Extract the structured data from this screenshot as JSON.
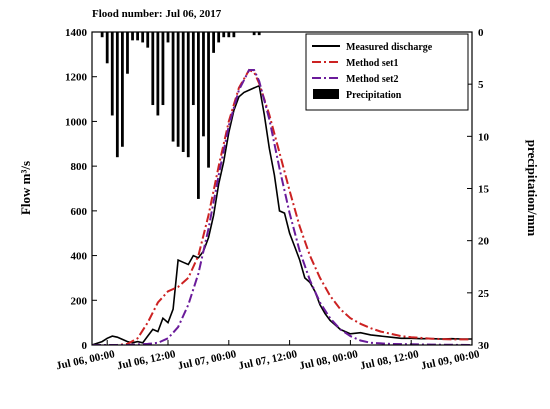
{
  "chart_data": {
    "type": "line",
    "title": "Flood number: Jul 06, 2017",
    "ylabel_left": "Flow m³/s",
    "ylabel_right": "precipitation/mm",
    "xlabel": "",
    "x_unit": "hours since Jul 06, 00:00",
    "xlim": [
      -3,
      72
    ],
    "ylim_left": [
      0,
      1400
    ],
    "ylim_right_inverted": [
      0,
      30
    ],
    "x_ticks": [
      {
        "x": 0,
        "label": "Jul 06, 00:00"
      },
      {
        "x": 12,
        "label": "Jul 06, 12:00"
      },
      {
        "x": 24,
        "label": "Jul 07, 00:00"
      },
      {
        "x": 36,
        "label": "Jul 07, 12:00"
      },
      {
        "x": 48,
        "label": "Jul 08, 00:00"
      },
      {
        "x": 60,
        "label": "Jul 08, 12:00"
      },
      {
        "x": 72,
        "label": "Jul 09, 00:00"
      }
    ],
    "y_ticks_left": [
      0,
      200,
      400,
      600,
      800,
      1000,
      1200,
      1400
    ],
    "y_ticks_right": [
      0,
      5,
      10,
      15,
      20,
      25,
      30
    ],
    "legend": {
      "position": "top-right"
    },
    "series": [
      {
        "name": "Measured discharge",
        "color": "#000000",
        "style": "solid",
        "points": [
          [
            -3,
            0
          ],
          [
            -1,
            15
          ],
          [
            0,
            30
          ],
          [
            1,
            40
          ],
          [
            2,
            35
          ],
          [
            3,
            25
          ],
          [
            4,
            15
          ],
          [
            5,
            10
          ],
          [
            6,
            15
          ],
          [
            7,
            10
          ],
          [
            8,
            40
          ],
          [
            9,
            70
          ],
          [
            10,
            60
          ],
          [
            11,
            120
          ],
          [
            12,
            100
          ],
          [
            13,
            160
          ],
          [
            14,
            380
          ],
          [
            15,
            370
          ],
          [
            16,
            360
          ],
          [
            17,
            400
          ],
          [
            18,
            390
          ],
          [
            19,
            420
          ],
          [
            20,
            480
          ],
          [
            21,
            580
          ],
          [
            22,
            720
          ],
          [
            23,
            820
          ],
          [
            24,
            950
          ],
          [
            25,
            1050
          ],
          [
            26,
            1110
          ],
          [
            27,
            1130
          ],
          [
            28,
            1140
          ],
          [
            29,
            1150
          ],
          [
            30,
            1160
          ],
          [
            31,
            1030
          ],
          [
            32,
            880
          ],
          [
            33,
            760
          ],
          [
            34,
            600
          ],
          [
            35,
            590
          ],
          [
            36,
            500
          ],
          [
            37,
            440
          ],
          [
            38,
            380
          ],
          [
            39,
            300
          ],
          [
            40,
            280
          ],
          [
            41,
            240
          ],
          [
            42,
            180
          ],
          [
            43,
            140
          ],
          [
            44,
            110
          ],
          [
            45,
            90
          ],
          [
            46,
            70
          ],
          [
            47,
            60
          ],
          [
            48,
            50
          ],
          [
            50,
            55
          ],
          [
            52,
            45
          ],
          [
            54,
            40
          ],
          [
            56,
            35
          ],
          [
            58,
            30
          ],
          [
            60,
            30
          ],
          [
            62,
            28
          ],
          [
            64,
            28
          ],
          [
            66,
            27
          ],
          [
            68,
            28
          ],
          [
            70,
            27
          ],
          [
            72,
            27
          ]
        ]
      },
      {
        "name": "Method set1",
        "color": "#cc2222",
        "style": "dashdot",
        "points": [
          [
            -3,
            0
          ],
          [
            0,
            0
          ],
          [
            2,
            0
          ],
          [
            4,
            5
          ],
          [
            6,
            30
          ],
          [
            8,
            100
          ],
          [
            10,
            190
          ],
          [
            12,
            240
          ],
          [
            14,
            260
          ],
          [
            16,
            300
          ],
          [
            18,
            400
          ],
          [
            20,
            580
          ],
          [
            22,
            800
          ],
          [
            24,
            1000
          ],
          [
            26,
            1150
          ],
          [
            28,
            1230
          ],
          [
            29,
            1220
          ],
          [
            30,
            1170
          ],
          [
            32,
            1030
          ],
          [
            34,
            860
          ],
          [
            36,
            690
          ],
          [
            38,
            530
          ],
          [
            40,
            400
          ],
          [
            42,
            300
          ],
          [
            44,
            220
          ],
          [
            46,
            160
          ],
          [
            48,
            120
          ],
          [
            50,
            95
          ],
          [
            52,
            75
          ],
          [
            54,
            60
          ],
          [
            56,
            50
          ],
          [
            58,
            40
          ],
          [
            60,
            35
          ],
          [
            64,
            28
          ],
          [
            68,
            25
          ],
          [
            72,
            25
          ]
        ]
      },
      {
        "name": "Method set2",
        "color": "#6a1b9a",
        "style": "dashdot",
        "points": [
          [
            -3,
            0
          ],
          [
            0,
            0
          ],
          [
            4,
            0
          ],
          [
            8,
            5
          ],
          [
            10,
            10
          ],
          [
            12,
            30
          ],
          [
            14,
            80
          ],
          [
            16,
            180
          ],
          [
            18,
            320
          ],
          [
            20,
            520
          ],
          [
            22,
            760
          ],
          [
            24,
            980
          ],
          [
            26,
            1140
          ],
          [
            28,
            1230
          ],
          [
            29,
            1230
          ],
          [
            30,
            1180
          ],
          [
            32,
            1010
          ],
          [
            34,
            790
          ],
          [
            36,
            590
          ],
          [
            38,
            420
          ],
          [
            40,
            290
          ],
          [
            42,
            190
          ],
          [
            44,
            120
          ],
          [
            46,
            70
          ],
          [
            48,
            40
          ],
          [
            50,
            20
          ],
          [
            52,
            10
          ],
          [
            56,
            5
          ],
          [
            60,
            3
          ],
          [
            64,
            2
          ],
          [
            72,
            0
          ]
        ]
      },
      {
        "name": "Precipitation",
        "color": "#000000",
        "style": "bar",
        "x": [
          -1,
          0,
          1,
          2,
          3,
          4,
          5,
          6,
          7,
          8,
          9,
          10,
          11,
          12,
          13,
          14,
          15,
          16,
          17,
          18,
          19,
          20,
          21,
          22,
          23,
          24,
          25,
          26,
          27,
          28,
          29,
          30
        ],
        "values": [
          0.5,
          3,
          8,
          12,
          11,
          4,
          0.8,
          0.8,
          1,
          1.5,
          7,
          8,
          7,
          1,
          10.5,
          11,
          11.5,
          12,
          7,
          16,
          10,
          13,
          2,
          1,
          0.5,
          0.5,
          0.5,
          0,
          0,
          0,
          0.3,
          0.3
        ]
      }
    ]
  }
}
